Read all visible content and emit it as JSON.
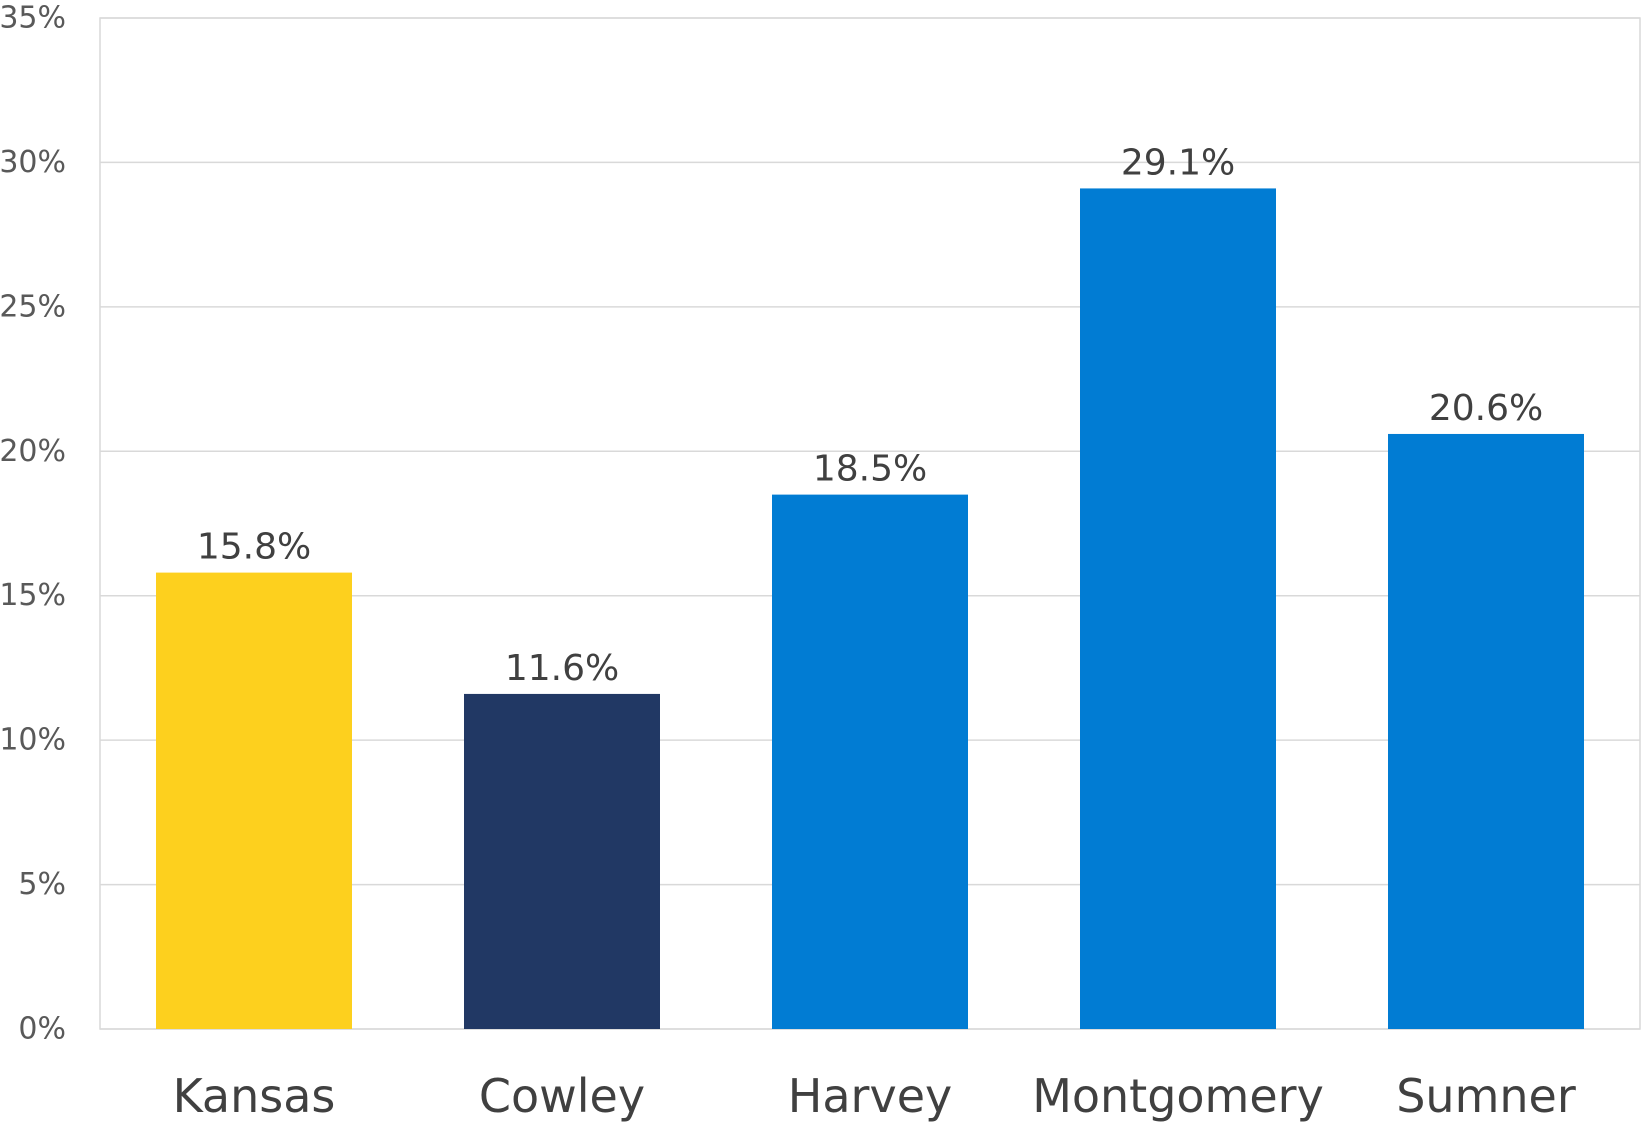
{
  "chart_data": {
    "type": "bar",
    "categories": [
      "Kansas",
      "Cowley",
      "Harvey",
      "Montgomery",
      "Sumner"
    ],
    "values": [
      15.8,
      11.6,
      18.5,
      29.1,
      20.6
    ],
    "data_labels": [
      "15.8%",
      "11.6%",
      "18.5%",
      "29.1%",
      "20.6%"
    ],
    "colors": [
      "#FDD01E",
      "#213864",
      "#017CD3",
      "#017CD3",
      "#017CD3"
    ],
    "ylim": [
      0,
      35
    ],
    "yticks": [
      0,
      5,
      10,
      15,
      20,
      25,
      30,
      35
    ],
    "ytick_labels": [
      "0%",
      "5%",
      "10%",
      "15%",
      "20%",
      "25%",
      "30%",
      "35%"
    ],
    "grid": true,
    "legend": "none",
    "title": "",
    "xlabel": "",
    "ylabel": ""
  }
}
